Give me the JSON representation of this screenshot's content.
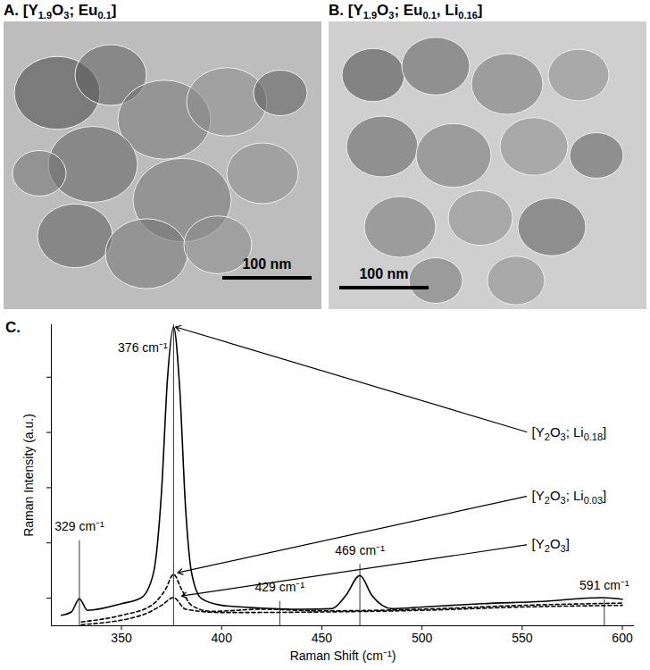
{
  "images": [
    {
      "title": "A. [Y1.9O3; Eu0.1]",
      "scale_bar": "100 nm"
    },
    {
      "title": "B. [Y1.9O3; Eu0.1, Li0.16]",
      "scale_bar": "100 nm"
    }
  ],
  "chart_data": {
    "type": "line",
    "title": "C.",
    "x_label": "Raman Shift (cm⁻¹)",
    "y_label": "Raman Intensity (a.u.)",
    "xlim": [
      315,
      606
    ],
    "xticks": [
      350,
      400,
      450,
      500,
      550,
      600
    ],
    "ylim": [
      -0.5,
      4.95
    ],
    "yticks": [
      0,
      1,
      2,
      3,
      4
    ],
    "tick_labels": "x",
    "grid": false,
    "series": [
      {
        "name": "[Y2O3; Li0.18]",
        "color": "#000000",
        "line_style": "solid",
        "label_x": 553,
        "label_y": 3.0,
        "arrow_x": 377,
        "arrow_y": 4.91,
        "x": [
          320,
          325,
          329,
          333,
          350,
          360,
          366,
          370,
          373,
          376,
          379,
          382,
          385,
          390,
          400,
          420,
          440,
          455,
          462,
          469,
          475,
          485,
          500,
          530,
          560,
          590,
          600
        ],
        "values": [
          -0.31,
          -0.25,
          -0.01,
          -0.22,
          -0.1,
          0.01,
          0.46,
          1.93,
          3.99,
          4.91,
          3.84,
          1.63,
          0.46,
          -0.01,
          -0.13,
          -0.18,
          -0.2,
          -0.19,
          0.05,
          0.41,
          0.05,
          -0.19,
          -0.16,
          -0.1,
          -0.06,
          0.01,
          -0.02
        ]
      },
      {
        "name": "[Y2O3; Li0.03]",
        "color": "#000000",
        "line_style": "dashed",
        "label_x": 553,
        "label_y": 1.85,
        "arrow_x": 378,
        "arrow_y": 0.46,
        "x": [
          330,
          350,
          365,
          372,
          376,
          380,
          385,
          395,
          420,
          450,
          500,
          550,
          600
        ],
        "values": [
          -0.43,
          -0.31,
          -0.13,
          0.16,
          0.43,
          0.16,
          -0.13,
          -0.24,
          -0.2,
          -0.23,
          -0.2,
          -0.13,
          -0.09
        ]
      },
      {
        "name": "[Y2O3]",
        "color": "#000000",
        "line_style": "dashed",
        "label_x": 553,
        "label_y": 0.97,
        "arrow_x": 380,
        "arrow_y": 0.04,
        "x": [
          330,
          360,
          370,
          376,
          382,
          400,
          450,
          500,
          550,
          600
        ],
        "values": [
          -0.48,
          -0.31,
          -0.13,
          0.01,
          -0.2,
          -0.26,
          -0.25,
          -0.22,
          -0.16,
          -0.13
        ]
      }
    ],
    "reference_lines": [
      {
        "x": 329,
        "label": "329 cm⁻¹",
        "label_x": 329,
        "label_y": 1.29
      },
      {
        "x": 376,
        "label": "376 cm⁻¹",
        "label_x": 373,
        "label_y": 4.53
      },
      {
        "x": 429,
        "label": "429 cm⁻¹",
        "label_x": 429,
        "label_y": 0.19
      },
      {
        "x": 469,
        "label": "469 cm⁻¹",
        "label_x": 469,
        "label_y": 0.86
      },
      {
        "x": 591,
        "label": "591 cm⁻¹",
        "label_x": 591,
        "label_y": 0.22
      }
    ]
  }
}
